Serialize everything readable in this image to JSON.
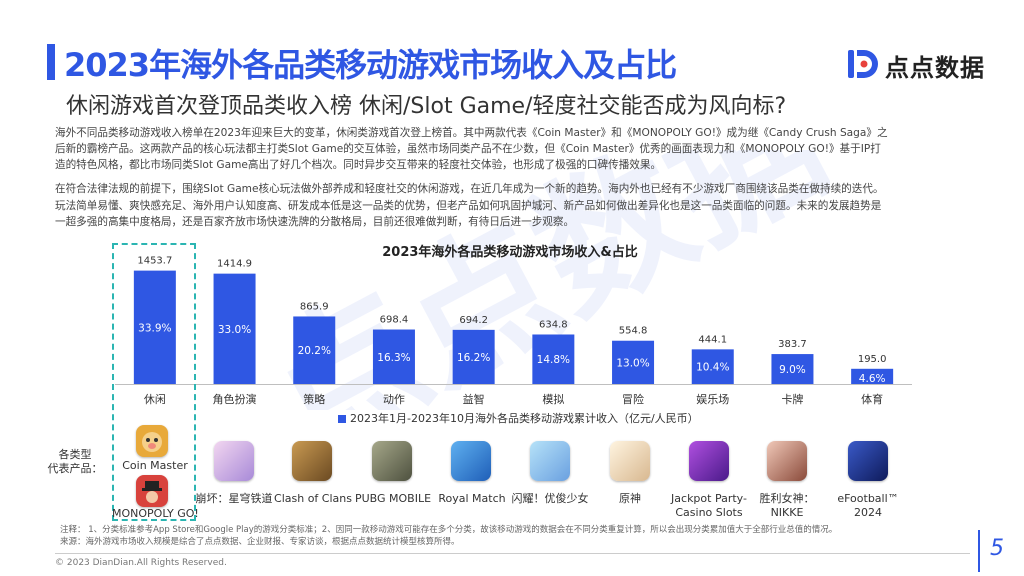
{
  "page": {
    "title": "2023年海外各品类移动游戏市场收入及占比",
    "subtitle": "休闲游戏首次登顶品类收入榜 休闲/Slot Game/轻度社交能否成为风向标?",
    "logo_text": "点点数据",
    "page_number": "5",
    "copyright": "© 2023 DianDian.All Rights Reserved."
  },
  "body": {
    "lines": [
      "海外不同品类移动游戏收入榜单在2023年迎来巨大的变革，休闲类游戏首次登上榜首。其中两款代表《Coin Master》和《MONOPOLY GO!》成为继《Candy Crush Saga》之",
      "后新的霸榜产品。这两款产品的核心玩法都主打类Slot Game的交互体验，虽然市场同类产品不在少数，但《Coin Master》优秀的画面表现力和《MONOPOLY GO!》基于IP打",
      "造的特色风格，都比市场同类Slot Game高出了好几个档次。同时异步交互带来的轻度社交体验，也形成了极强的口碑传播效果。",
      "在符合法律法规的前提下，围绕Slot Game核心玩法做外部养成和轻度社交的休闲游戏，在近几年成为一个新的趋势。海内外也已经有不少游戏厂商围绕该品类在做持续的迭代。",
      "玩法简单易懂、爽快感充足、海外用户认知度高、研发成本低是这一品类的优势，但老产品如何巩固护城河、新产品如何做出差异化也是这一品类面临的问题。未来的发展趋势是",
      "一超多强的高集中度格局，还是百家齐放市场快速洗牌的分散格局，目前还很难做判断，有待日后进一步观察。"
    ]
  },
  "chart_data": {
    "type": "bar",
    "title": "2023年海外各品类移动游戏市场收入&占比",
    "categories": [
      "休闲",
      "角色扮演",
      "策略",
      "动作",
      "益智",
      "模拟",
      "冒险",
      "娱乐场",
      "卡牌",
      "体育"
    ],
    "series": [
      {
        "name": "2023年1月-2023年10月海外各品类移动游戏累计收入（亿元/人民币）",
        "values": [
          1453.7,
          1414.9,
          865.9,
          698.4,
          694.2,
          634.8,
          554.8,
          444.1,
          383.7,
          195.0
        ],
        "value_labels": [
          "1453.7",
          "1414.9",
          "865.9",
          "698.4",
          "694.2",
          "634.8",
          "554.8",
          "444.1",
          "383.7",
          "195.0"
        ],
        "share_labels": [
          "33.9%",
          "33.0%",
          "20.2%",
          "16.3%",
          "16.2%",
          "14.8%",
          "13.0%",
          "10.4%",
          "9.0%",
          "4.6%"
        ]
      }
    ],
    "ylim": [
      0,
      1500
    ],
    "grid": false,
    "legend": "bottom",
    "bar_color": "#2f57e3"
  },
  "representatives": {
    "label_line1": "各类型",
    "label_line2": "代表产品：",
    "casual": [
      {
        "name": "Coin Master",
        "icon": "coin-master-icon",
        "color": "#e8a93a"
      },
      {
        "name": "MONOPOLY GO!",
        "icon": "monopoly-go-icon",
        "color": "#d8423c"
      }
    ],
    "games": [
      {
        "name": "崩坏：星穹铁道",
        "icon": "honkai-star-rail-icon",
        "color": "#c9a5d8"
      },
      {
        "name": "Clash of Clans",
        "icon": "clash-of-clans-icon",
        "color": "#8f6b3a"
      },
      {
        "name": "PUBG MOBILE",
        "icon": "pubg-mobile-icon",
        "color": "#7c7f6a"
      },
      {
        "name": "Royal Match",
        "icon": "royal-match-icon",
        "color": "#2c7fd8"
      },
      {
        "name": "闪耀！优俊少女",
        "icon": "umamusume-icon",
        "color": "#8fd0f0"
      },
      {
        "name": "原神",
        "icon": "genshin-impact-icon",
        "color": "#f0e0c0"
      },
      {
        "name": "Jackpot Party-Casino Slots",
        "name_line1": "Jackpot Party-",
        "name_line2": "Casino Slots",
        "icon": "jackpot-party-icon",
        "color": "#7b2fb5"
      },
      {
        "name": "胜利女神：NIKKE",
        "name_line1": "胜利女神：",
        "name_line2": "NIKKE",
        "icon": "nikke-icon",
        "color": "#d8a090"
      },
      {
        "name": "eFootball™ 2024",
        "name_line1": "eFootball™",
        "name_line2": "2024",
        "icon": "efootball-icon",
        "color": "#1a2a7a"
      }
    ]
  },
  "notes": {
    "line1": "注释：  1、分类标准参考App Store和Google Play的游戏分类标准；2、因同一款移动游戏可能存在多个分类，故该移动游戏的数据会在不同分类重复计算，所以会出现分类累加值大于全部行业总值的情况。",
    "line2": "来源：海外游戏市场收入规模是综合了点点数据、企业财报、专家访谈，根据点点数据统计模型核算所得。"
  }
}
